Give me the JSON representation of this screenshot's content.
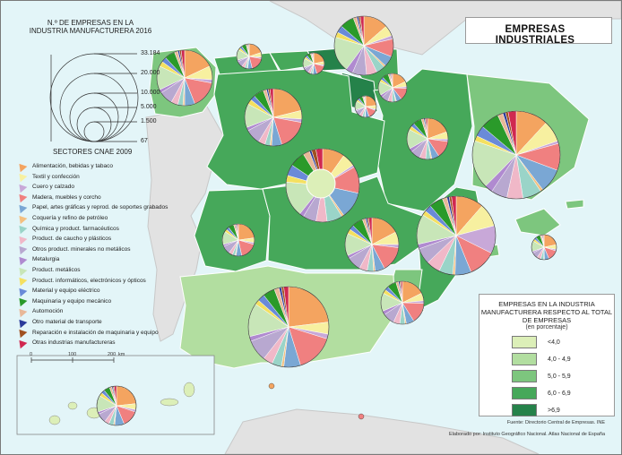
{
  "map_title": "EMPRESAS INDUSTRIALES",
  "size_legend": {
    "title": "N.º DE EMPRESAS EN LA INDUSTRIA MANUFACTURERA 2016",
    "values": [
      "33.184",
      "20.000",
      "10.000",
      "5.000",
      "1.500",
      "67"
    ]
  },
  "sector_legend": {
    "title": "SECTORES CNAE 2009",
    "items": [
      {
        "label": "Alimentación, bebidas y tabaco",
        "color": "#f4a460"
      },
      {
        "label": "Textil y confección",
        "color": "#f7f0a0"
      },
      {
        "label": "Cuero y calzado",
        "color": "#c8a8d8"
      },
      {
        "label": "Madera, muebles y corcho",
        "color": "#f08080"
      },
      {
        "label": "Papel, artes gráficas y reprod. de soportes grabados",
        "color": "#7aa7d4"
      },
      {
        "label": "Coquería y refino de petróleo",
        "color": "#f4c080"
      },
      {
        "label": "Química y product. farmacéuticos",
        "color": "#9ad4c8"
      },
      {
        "label": "Product. de caucho y plásticos",
        "color": "#f0b8c8"
      },
      {
        "label": "Otros product. minerales no metálicos",
        "color": "#b8a8d0"
      },
      {
        "label": "Metalurgia",
        "color": "#b08ad0"
      },
      {
        "label": "Product. metálicos",
        "color": "#c8e6b8"
      },
      {
        "label": "Product. informáticos, electrónicos y ópticos",
        "color": "#f4e060"
      },
      {
        "label": "Material y equipo eléctrico",
        "color": "#6a8ad8"
      },
      {
        "label": "Maquinaria y equipo mecánico",
        "color": "#2a9a2a"
      },
      {
        "label": "Automoción",
        "color": "#e8b898"
      },
      {
        "label": "Otro material de transporte",
        "color": "#2a3a9a"
      },
      {
        "label": "Reparación e instalación de maquinaria y equipo",
        "color": "#a05020"
      },
      {
        "label": "Otras industrias manufactureras",
        "color": "#d02850"
      }
    ]
  },
  "choropleth_legend": {
    "title": "EMPRESAS EN LA INDUSTRIA MANUFACTURERA RESPECTO AL TOTAL DE EMPRESAS",
    "subtitle": "(en porcentaje)",
    "classes": [
      {
        "label": "<4,0",
        "color": "#dcefb8"
      },
      {
        "label": "4,0 - 4,9",
        "color": "#b2dea0"
      },
      {
        "label": "5,0 - 5,9",
        "color": "#7dc67e"
      },
      {
        "label": "6,0 - 6,9",
        "color": "#46a85a"
      },
      {
        "label": ">6,9",
        "color": "#25824a"
      }
    ]
  },
  "scale_bar": {
    "labels": [
      "0",
      "100",
      "200",
      "km"
    ]
  },
  "source": "Fuente: Directorio Central de Empresas. INE",
  "credit": "Elaborado por: Instituto Geográfico Nacional. Atlas Nacional de España",
  "colors": {
    "sea": "#e3f5f8",
    "foreign_land": "#e0e0e0",
    "border": "#ffffff"
  }
}
